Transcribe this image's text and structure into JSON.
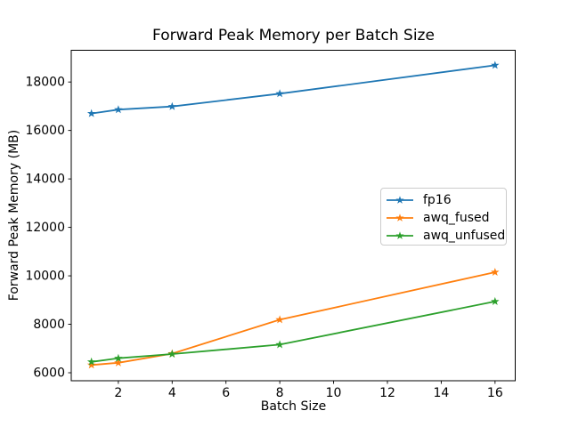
{
  "chart_data": {
    "type": "line",
    "title": "Forward Peak Memory per Batch Size",
    "xlabel": "Batch Size",
    "ylabel": "Forward Peak Memory (MB)",
    "x": [
      1,
      2,
      4,
      8,
      16
    ],
    "series": [
      {
        "name": "fp16",
        "color": "#1f77b4",
        "marker": "star",
        "values": [
          16700,
          16860,
          16990,
          17520,
          18690
        ]
      },
      {
        "name": "awq_fused",
        "color": "#ff7f0e",
        "marker": "star",
        "values": [
          6320,
          6410,
          6790,
          8190,
          10150
        ]
      },
      {
        "name": "awq_unfused",
        "color": "#2ca02c",
        "marker": "star",
        "values": [
          6450,
          6600,
          6770,
          7160,
          8940
        ]
      }
    ],
    "xlim": [
      0.25,
      16.75
    ],
    "ylim": [
      5670,
      19310
    ],
    "xticks": [
      2,
      4,
      6,
      8,
      10,
      12,
      14,
      16
    ],
    "yticks": [
      6000,
      8000,
      10000,
      12000,
      14000,
      16000,
      18000
    ],
    "grid": false,
    "legend_position": "center-right",
    "axis_color": "#000000",
    "background": "#ffffff"
  }
}
